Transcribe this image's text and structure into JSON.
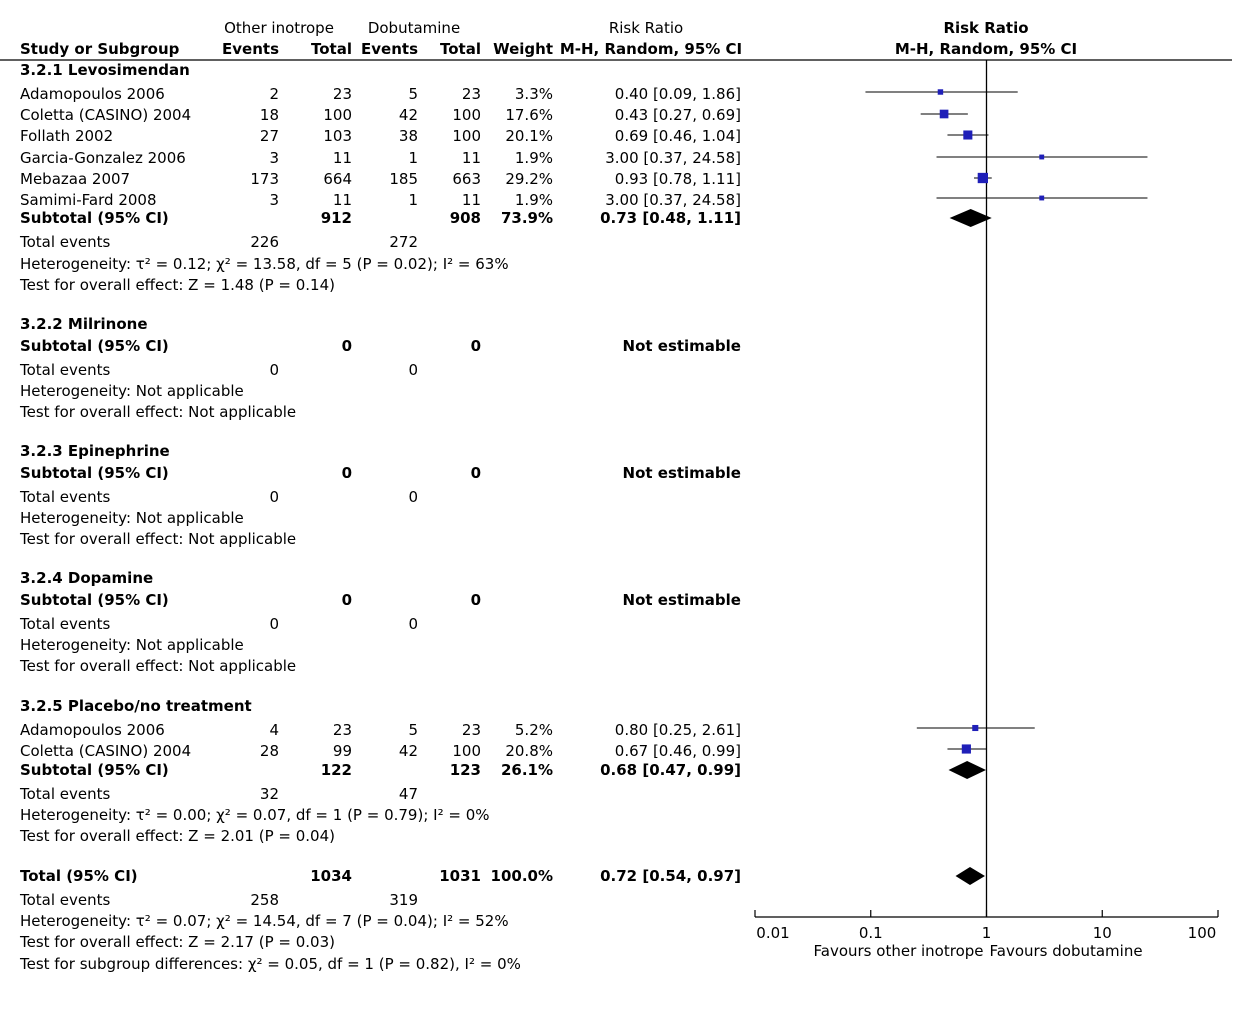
{
  "header": {
    "group1": "Other inotrope",
    "group2": "Dobutamine",
    "rr_title": "Risk Ratio",
    "col_study": "Study or Subgroup",
    "col_events1": "Events",
    "col_total1": "Total",
    "col_events2": "Events",
    "col_total2": "Total",
    "col_weight": "Weight",
    "col_method": "M-H, Random, 95% CI",
    "plot_title": "Risk Ratio",
    "plot_method": "M-H, Random, 95% CI"
  },
  "subgroups": [
    {
      "title": "3.2.1 Levosimendan",
      "studies": [
        {
          "name": "Adamopoulos 2006",
          "e1": "2",
          "t1": "23",
          "e2": "5",
          "t2": "23",
          "weight": "3.3%",
          "ci_text": "0.40 [0.09, 1.86]"
        },
        {
          "name": "Coletta (CASINO) 2004",
          "e1": "18",
          "t1": "100",
          "e2": "42",
          "t2": "100",
          "weight": "17.6%",
          "ci_text": "0.43 [0.27, 0.69]"
        },
        {
          "name": "Follath 2002",
          "e1": "27",
          "t1": "103",
          "e2": "38",
          "t2": "100",
          "weight": "20.1%",
          "ci_text": "0.69 [0.46, 1.04]"
        },
        {
          "name": "Garcia-Gonzalez 2006",
          "e1": "3",
          "t1": "11",
          "e2": "1",
          "t2": "11",
          "weight": "1.9%",
          "ci_text": "3.00 [0.37, 24.58]"
        },
        {
          "name": "Mebazaa 2007",
          "e1": "173",
          "t1": "664",
          "e2": "185",
          "t2": "663",
          "weight": "29.2%",
          "ci_text": "0.93 [0.78, 1.11]"
        },
        {
          "name": "Samimi-Fard 2008",
          "e1": "3",
          "t1": "11",
          "e2": "1",
          "t2": "11",
          "weight": "1.9%",
          "ci_text": "3.00 [0.37, 24.58]"
        }
      ],
      "subtotal": {
        "label": "Subtotal (95% CI)",
        "t1": "912",
        "t2": "908",
        "weight": "73.9%",
        "ci_text": "0.73 [0.48, 1.11]"
      },
      "total_events": {
        "label": "Total events",
        "e1": "226",
        "e2": "272"
      },
      "heterogeneity": "Heterogeneity: τ² = 0.12;  χ² = 13.58, df = 5 (P = 0.02); I² = 63%",
      "overall": "Test for overall effect: Z = 1.48 (P = 0.14)"
    },
    {
      "title": "3.2.2 Milrinone",
      "studies": [],
      "subtotal": {
        "label": "Subtotal (95% CI)",
        "t1": "0",
        "t2": "0",
        "weight": "",
        "ci_text": "Not estimable"
      },
      "total_events": {
        "label": "Total events",
        "e1": "0",
        "e2": "0"
      },
      "heterogeneity": "Heterogeneity: Not applicable",
      "overall": "Test for overall effect: Not applicable"
    },
    {
      "title": "3.2.3 Epinephrine",
      "studies": [],
      "subtotal": {
        "label": "Subtotal (95% CI)",
        "t1": "0",
        "t2": "0",
        "weight": "",
        "ci_text": "Not estimable"
      },
      "total_events": {
        "label": "Total events",
        "e1": "0",
        "e2": "0"
      },
      "heterogeneity": "Heterogeneity: Not applicable",
      "overall": "Test for overall effect: Not applicable"
    },
    {
      "title": "3.2.4 Dopamine",
      "studies": [],
      "subtotal": {
        "label": "Subtotal (95% CI)",
        "t1": "0",
        "t2": "0",
        "weight": "",
        "ci_text": "Not estimable"
      },
      "total_events": {
        "label": "Total events",
        "e1": "0",
        "e2": "0"
      },
      "heterogeneity": "Heterogeneity: Not applicable",
      "overall": "Test for overall effect: Not applicable"
    },
    {
      "title": "3.2.5 Placebo/no treatment",
      "studies": [
        {
          "name": "Adamopoulos 2006",
          "e1": "4",
          "t1": "23",
          "e2": "5",
          "t2": "23",
          "weight": "5.2%",
          "ci_text": "0.80 [0.25, 2.61]"
        },
        {
          "name": "Coletta (CASINO) 2004",
          "e1": "28",
          "t1": "99",
          "e2": "42",
          "t2": "100",
          "weight": "20.8%",
          "ci_text": "0.67 [0.46, 0.99]"
        }
      ],
      "subtotal": {
        "label": "Subtotal (95% CI)",
        "t1": "122",
        "t2": "123",
        "weight": "26.1%",
        "ci_text": "0.68 [0.47, 0.99]"
      },
      "total_events": {
        "label": "Total events",
        "e1": "32",
        "e2": "47"
      },
      "heterogeneity": "Heterogeneity: τ² = 0.00;  χ² = 0.07, df = 1 (P = 0.79); I² = 0%",
      "overall": "Test for overall effect: Z = 2.01 (P = 0.04)"
    }
  ],
  "total": {
    "label": "Total (95% CI)",
    "t1": "1034",
    "t2": "1031",
    "weight": "100.0%",
    "ci_text": "0.72 [0.54, 0.97]",
    "events_label": "Total events",
    "e1": "258",
    "e2": "319",
    "heterogeneity": "Heterogeneity: τ² = 0.07; χ² = 14.54, df = 7 (P = 0.04); I² = 52%",
    "overall": "Test for overall effect: Z = 2.17 (P = 0.03)",
    "subgroup_diff": "Test for subgroup differences: χ² = 0.05, df = 1 (P = 0.82), I² = 0%"
  },
  "axis": {
    "favours_left": "Favours other inotrope",
    "favours_right": "Favours dobutamine"
  },
  "chart_data": {
    "type": "scatter",
    "title": "Risk Ratio",
    "subtitle": "M-H, Random, 95% CI",
    "x_scale": "log",
    "xlim": [
      0.01,
      100
    ],
    "x_ticks": [
      "0.01",
      "0.1",
      "1",
      "10",
      "100"
    ],
    "x_tick_values": [
      0.01,
      0.1,
      1,
      10,
      100
    ],
    "reference_line": 1,
    "xlabel_left": "Favours other inotrope",
    "xlabel_right": "Favours dobutamine",
    "studies": [
      {
        "group": "3.2.1 Levosimendan",
        "name": "Adamopoulos 2006",
        "rr": 0.4,
        "lo": 0.09,
        "hi": 1.86,
        "weight": 3.3
      },
      {
        "group": "3.2.1 Levosimendan",
        "name": "Coletta (CASINO) 2004",
        "rr": 0.43,
        "lo": 0.27,
        "hi": 0.69,
        "weight": 17.6
      },
      {
        "group": "3.2.1 Levosimendan",
        "name": "Follath 2002",
        "rr": 0.69,
        "lo": 0.46,
        "hi": 1.04,
        "weight": 20.1
      },
      {
        "group": "3.2.1 Levosimendan",
        "name": "Garcia-Gonzalez 2006",
        "rr": 3.0,
        "lo": 0.37,
        "hi": 24.58,
        "weight": 1.9
      },
      {
        "group": "3.2.1 Levosimendan",
        "name": "Mebazaa 2007",
        "rr": 0.93,
        "lo": 0.78,
        "hi": 1.11,
        "weight": 29.2
      },
      {
        "group": "3.2.1 Levosimendan",
        "name": "Samimi-Fard 2008",
        "rr": 3.0,
        "lo": 0.37,
        "hi": 24.58,
        "weight": 1.9
      },
      {
        "group": "3.2.5 Placebo/no treatment",
        "name": "Adamopoulos 2006",
        "rr": 0.8,
        "lo": 0.25,
        "hi": 2.61,
        "weight": 5.2
      },
      {
        "group": "3.2.5 Placebo/no treatment",
        "name": "Coletta (CASINO) 2004",
        "rr": 0.67,
        "lo": 0.46,
        "hi": 0.99,
        "weight": 20.8
      }
    ],
    "pooled": [
      {
        "name": "Subtotal 3.2.1 Levosimendan",
        "rr": 0.73,
        "lo": 0.48,
        "hi": 1.11
      },
      {
        "name": "Subtotal 3.2.5 Placebo/no treatment",
        "rr": 0.68,
        "lo": 0.47,
        "hi": 0.99
      },
      {
        "name": "Total (95% CI)",
        "rr": 0.72,
        "lo": 0.54,
        "hi": 0.97
      }
    ],
    "colors": {
      "study_marker": "#1f1fb8",
      "pooled_marker": "#000000",
      "line": "#000000"
    }
  }
}
